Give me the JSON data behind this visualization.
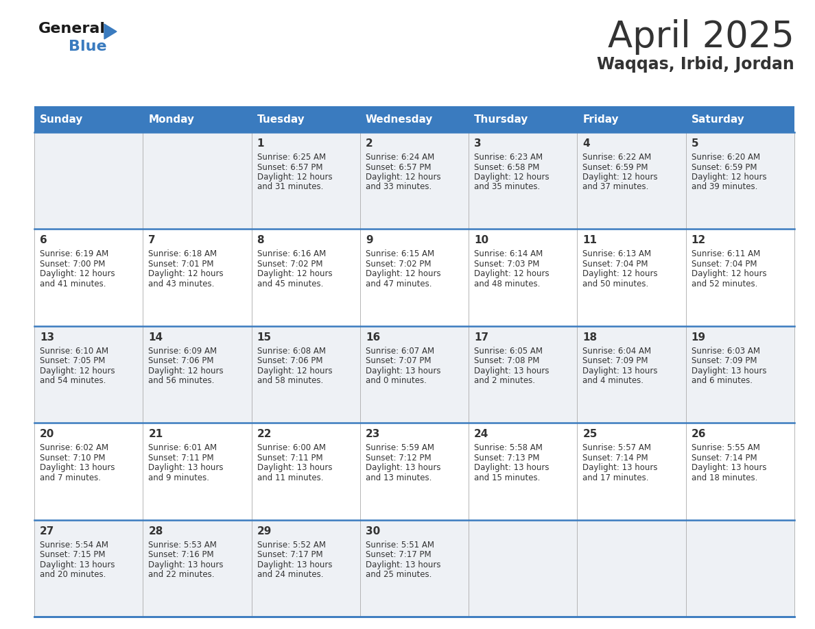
{
  "title": "April 2025",
  "subtitle": "Waqqas, Irbid, Jordan",
  "header_color": "#3a7bbf",
  "header_text_color": "#ffffff",
  "text_color": "#333333",
  "line_color": "#3a7bbf",
  "grid_line_color": "#aaaaaa",
  "row_bg_odd": "#eef1f5",
  "row_bg_even": "#ffffff",
  "days_of_week": [
    "Sunday",
    "Monday",
    "Tuesday",
    "Wednesday",
    "Thursday",
    "Friday",
    "Saturday"
  ],
  "weeks": [
    [
      {
        "day": "",
        "sunrise": "",
        "sunset": "",
        "daylight": ""
      },
      {
        "day": "",
        "sunrise": "",
        "sunset": "",
        "daylight": ""
      },
      {
        "day": "1",
        "sunrise": "6:25 AM",
        "sunset": "6:57 PM",
        "daylight_h": "12 hours",
        "daylight_m": "and 31 minutes."
      },
      {
        "day": "2",
        "sunrise": "6:24 AM",
        "sunset": "6:57 PM",
        "daylight_h": "12 hours",
        "daylight_m": "and 33 minutes."
      },
      {
        "day": "3",
        "sunrise": "6:23 AM",
        "sunset": "6:58 PM",
        "daylight_h": "12 hours",
        "daylight_m": "and 35 minutes."
      },
      {
        "day": "4",
        "sunrise": "6:22 AM",
        "sunset": "6:59 PM",
        "daylight_h": "12 hours",
        "daylight_m": "and 37 minutes."
      },
      {
        "day": "5",
        "sunrise": "6:20 AM",
        "sunset": "6:59 PM",
        "daylight_h": "12 hours",
        "daylight_m": "and 39 minutes."
      }
    ],
    [
      {
        "day": "6",
        "sunrise": "6:19 AM",
        "sunset": "7:00 PM",
        "daylight_h": "12 hours",
        "daylight_m": "and 41 minutes."
      },
      {
        "day": "7",
        "sunrise": "6:18 AM",
        "sunset": "7:01 PM",
        "daylight_h": "12 hours",
        "daylight_m": "and 43 minutes."
      },
      {
        "day": "8",
        "sunrise": "6:16 AM",
        "sunset": "7:02 PM",
        "daylight_h": "12 hours",
        "daylight_m": "and 45 minutes."
      },
      {
        "day": "9",
        "sunrise": "6:15 AM",
        "sunset": "7:02 PM",
        "daylight_h": "12 hours",
        "daylight_m": "and 47 minutes."
      },
      {
        "day": "10",
        "sunrise": "6:14 AM",
        "sunset": "7:03 PM",
        "daylight_h": "12 hours",
        "daylight_m": "and 48 minutes."
      },
      {
        "day": "11",
        "sunrise": "6:13 AM",
        "sunset": "7:04 PM",
        "daylight_h": "12 hours",
        "daylight_m": "and 50 minutes."
      },
      {
        "day": "12",
        "sunrise": "6:11 AM",
        "sunset": "7:04 PM",
        "daylight_h": "12 hours",
        "daylight_m": "and 52 minutes."
      }
    ],
    [
      {
        "day": "13",
        "sunrise": "6:10 AM",
        "sunset": "7:05 PM",
        "daylight_h": "12 hours",
        "daylight_m": "and 54 minutes."
      },
      {
        "day": "14",
        "sunrise": "6:09 AM",
        "sunset": "7:06 PM",
        "daylight_h": "12 hours",
        "daylight_m": "and 56 minutes."
      },
      {
        "day": "15",
        "sunrise": "6:08 AM",
        "sunset": "7:06 PM",
        "daylight_h": "12 hours",
        "daylight_m": "and 58 minutes."
      },
      {
        "day": "16",
        "sunrise": "6:07 AM",
        "sunset": "7:07 PM",
        "daylight_h": "13 hours",
        "daylight_m": "and 0 minutes."
      },
      {
        "day": "17",
        "sunrise": "6:05 AM",
        "sunset": "7:08 PM",
        "daylight_h": "13 hours",
        "daylight_m": "and 2 minutes."
      },
      {
        "day": "18",
        "sunrise": "6:04 AM",
        "sunset": "7:09 PM",
        "daylight_h": "13 hours",
        "daylight_m": "and 4 minutes."
      },
      {
        "day": "19",
        "sunrise": "6:03 AM",
        "sunset": "7:09 PM",
        "daylight_h": "13 hours",
        "daylight_m": "and 6 minutes."
      }
    ],
    [
      {
        "day": "20",
        "sunrise": "6:02 AM",
        "sunset": "7:10 PM",
        "daylight_h": "13 hours",
        "daylight_m": "and 7 minutes."
      },
      {
        "day": "21",
        "sunrise": "6:01 AM",
        "sunset": "7:11 PM",
        "daylight_h": "13 hours",
        "daylight_m": "and 9 minutes."
      },
      {
        "day": "22",
        "sunrise": "6:00 AM",
        "sunset": "7:11 PM",
        "daylight_h": "13 hours",
        "daylight_m": "and 11 minutes."
      },
      {
        "day": "23",
        "sunrise": "5:59 AM",
        "sunset": "7:12 PM",
        "daylight_h": "13 hours",
        "daylight_m": "and 13 minutes."
      },
      {
        "day": "24",
        "sunrise": "5:58 AM",
        "sunset": "7:13 PM",
        "daylight_h": "13 hours",
        "daylight_m": "and 15 minutes."
      },
      {
        "day": "25",
        "sunrise": "5:57 AM",
        "sunset": "7:14 PM",
        "daylight_h": "13 hours",
        "daylight_m": "and 17 minutes."
      },
      {
        "day": "26",
        "sunrise": "5:55 AM",
        "sunset": "7:14 PM",
        "daylight_h": "13 hours",
        "daylight_m": "and 18 minutes."
      }
    ],
    [
      {
        "day": "27",
        "sunrise": "5:54 AM",
        "sunset": "7:15 PM",
        "daylight_h": "13 hours",
        "daylight_m": "and 20 minutes."
      },
      {
        "day": "28",
        "sunrise": "5:53 AM",
        "sunset": "7:16 PM",
        "daylight_h": "13 hours",
        "daylight_m": "and 22 minutes."
      },
      {
        "day": "29",
        "sunrise": "5:52 AM",
        "sunset": "7:17 PM",
        "daylight_h": "13 hours",
        "daylight_m": "and 24 minutes."
      },
      {
        "day": "30",
        "sunrise": "5:51 AM",
        "sunset": "7:17 PM",
        "daylight_h": "13 hours",
        "daylight_m": "and 25 minutes."
      },
      {
        "day": "",
        "sunrise": "",
        "sunset": "",
        "daylight_h": "",
        "daylight_m": ""
      },
      {
        "day": "",
        "sunrise": "",
        "sunset": "",
        "daylight_h": "",
        "daylight_m": ""
      },
      {
        "day": "",
        "sunrise": "",
        "sunset": "",
        "daylight_h": "",
        "daylight_m": ""
      }
    ]
  ],
  "logo_general_color": "#1a1a1a",
  "logo_blue_color": "#3a7bbf",
  "logo_triangle_color": "#3a7bbf"
}
